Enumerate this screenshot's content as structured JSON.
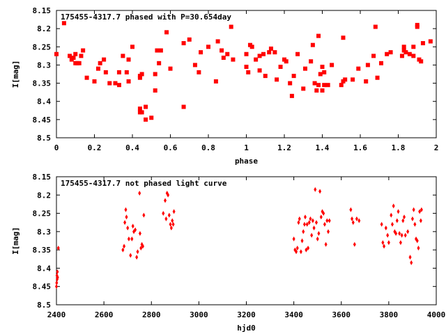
{
  "chart_data": [
    {
      "type": "scatter",
      "title": "175455-4317.7 phased with P=30.654day",
      "xlabel": "phase",
      "ylabel": "I[mag]",
      "xlim": [
        0,
        2
      ],
      "ylim": [
        8.15,
        8.5
      ],
      "y_inverted": true,
      "grid": false,
      "marker_color": "#ff0000",
      "marker": "square",
      "xticks": [
        "0",
        "0.2",
        "0.4",
        "0.6",
        "0.8",
        "1",
        "1.2",
        "1.4",
        "1.6",
        "1.8",
        "2"
      ],
      "yticks": [
        "8.15",
        "8.2",
        "8.25",
        "8.3",
        "8.35",
        "8.4",
        "8.45",
        "8.5"
      ],
      "points": [
        [
          0.0,
          8.27
        ],
        [
          0.04,
          8.185
        ],
        [
          0.07,
          8.275
        ],
        [
          0.08,
          8.285
        ],
        [
          0.09,
          8.28
        ],
        [
          0.1,
          8.295
        ],
        [
          0.1,
          8.27
        ],
        [
          0.11,
          8.295
        ],
        [
          0.12,
          8.295
        ],
        [
          0.13,
          8.275
        ],
        [
          0.14,
          8.26
        ],
        [
          0.16,
          8.335
        ],
        [
          0.2,
          8.345
        ],
        [
          0.22,
          8.31
        ],
        [
          0.23,
          8.295
        ],
        [
          0.25,
          8.285
        ],
        [
          0.26,
          8.32
        ],
        [
          0.28,
          8.35
        ],
        [
          0.31,
          8.35
        ],
        [
          0.33,
          8.355
        ],
        [
          0.33,
          8.32
        ],
        [
          0.35,
          8.275
        ],
        [
          0.37,
          8.32
        ],
        [
          0.38,
          8.345
        ],
        [
          0.38,
          8.285
        ],
        [
          0.4,
          8.25
        ],
        [
          0.44,
          8.335
        ],
        [
          0.44,
          8.33
        ],
        [
          0.45,
          8.325
        ],
        [
          0.44,
          8.42
        ],
        [
          0.44,
          8.43
        ],
        [
          0.45,
          8.43
        ],
        [
          0.47,
          8.45
        ],
        [
          0.47,
          8.415
        ],
        [
          0.5,
          8.445
        ],
        [
          0.52,
          8.37
        ],
        [
          0.52,
          8.325
        ],
        [
          0.53,
          8.26
        ],
        [
          0.54,
          8.295
        ],
        [
          0.55,
          8.26
        ],
        [
          0.58,
          8.21
        ],
        [
          0.6,
          8.31
        ],
        [
          0.67,
          8.415
        ],
        [
          0.67,
          8.24
        ],
        [
          0.7,
          8.23
        ],
        [
          0.73,
          8.3
        ],
        [
          0.75,
          8.32
        ],
        [
          0.76,
          8.265
        ],
        [
          0.8,
          8.25
        ],
        [
          0.84,
          8.345
        ],
        [
          0.85,
          8.235
        ],
        [
          0.87,
          8.26
        ],
        [
          0.88,
          8.28
        ],
        [
          0.9,
          8.27
        ],
        [
          0.92,
          8.195
        ],
        [
          0.93,
          8.285
        ],
        [
          1.0,
          8.27
        ],
        [
          1.0,
          8.305
        ],
        [
          1.01,
          8.32
        ],
        [
          1.02,
          8.245
        ],
        [
          1.03,
          8.25
        ],
        [
          1.05,
          8.285
        ],
        [
          1.07,
          8.315
        ],
        [
          1.07,
          8.275
        ],
        [
          1.09,
          8.27
        ],
        [
          1.1,
          8.33
        ],
        [
          1.12,
          8.265
        ],
        [
          1.13,
          8.255
        ],
        [
          1.15,
          8.265
        ],
        [
          1.16,
          8.34
        ],
        [
          1.18,
          8.305
        ],
        [
          1.2,
          8.285
        ],
        [
          1.21,
          8.29
        ],
        [
          1.23,
          8.35
        ],
        [
          1.24,
          8.385
        ],
        [
          1.25,
          8.33
        ],
        [
          1.27,
          8.27
        ],
        [
          1.3,
          8.365
        ],
        [
          1.31,
          8.31
        ],
        [
          1.34,
          8.29
        ],
        [
          1.35,
          8.245
        ],
        [
          1.36,
          8.35
        ],
        [
          1.37,
          8.37
        ],
        [
          1.38,
          8.22
        ],
        [
          1.38,
          8.355
        ],
        [
          1.39,
          8.325
        ],
        [
          1.4,
          8.305
        ],
        [
          1.4,
          8.37
        ],
        [
          1.41,
          8.355
        ],
        [
          1.41,
          8.32
        ],
        [
          1.43,
          8.355
        ],
        [
          1.45,
          8.3
        ],
        [
          1.5,
          8.355
        ],
        [
          1.51,
          8.345
        ],
        [
          1.51,
          8.225
        ],
        [
          1.52,
          8.34
        ],
        [
          1.56,
          8.34
        ],
        [
          1.59,
          8.31
        ],
        [
          1.63,
          8.345
        ],
        [
          1.64,
          8.3
        ],
        [
          1.67,
          8.275
        ],
        [
          1.68,
          8.195
        ],
        [
          1.69,
          8.335
        ],
        [
          1.71,
          8.295
        ],
        [
          1.74,
          8.27
        ],
        [
          1.76,
          8.265
        ],
        [
          1.82,
          8.275
        ],
        [
          1.83,
          8.25
        ],
        [
          1.83,
          8.26
        ],
        [
          1.84,
          8.265
        ],
        [
          1.86,
          8.27
        ],
        [
          1.88,
          8.275
        ],
        [
          1.88,
          8.25
        ],
        [
          1.9,
          8.195
        ],
        [
          1.9,
          8.19
        ],
        [
          1.91,
          8.285
        ],
        [
          1.92,
          8.29
        ],
        [
          1.93,
          8.24
        ],
        [
          1.97,
          8.235
        ]
      ]
    },
    {
      "type": "scatter",
      "title": "175455-4317.7 not phased light curve",
      "xlabel": "hjd0",
      "ylabel": "I[mag]",
      "xlim": [
        2400,
        4000
      ],
      "ylim": [
        8.15,
        8.5
      ],
      "y_inverted": true,
      "grid": false,
      "marker_color": "#ff0000",
      "marker": "diamond",
      "xticks": [
        "2400",
        "2600",
        "2800",
        "3000",
        "3200",
        "3400",
        "3600",
        "3800",
        "4000"
      ],
      "yticks": [
        "8.15",
        "8.2",
        "8.25",
        "8.3",
        "8.35",
        "8.4",
        "8.45",
        "8.5"
      ],
      "points": [
        [
          2400,
          8.45
        ],
        [
          2401,
          8.44
        ],
        [
          2402,
          8.42
        ],
        [
          2403,
          8.43
        ],
        [
          2404,
          8.41
        ],
        [
          2405,
          8.425
        ],
        [
          2408,
          8.345
        ],
        [
          2680,
          8.35
        ],
        [
          2685,
          8.34
        ],
        [
          2688,
          8.275
        ],
        [
          2692,
          8.24
        ],
        [
          2695,
          8.26
        ],
        [
          2700,
          8.29
        ],
        [
          2705,
          8.32
        ],
        [
          2712,
          8.365
        ],
        [
          2718,
          8.32
        ],
        [
          2722,
          8.285
        ],
        [
          2726,
          8.3
        ],
        [
          2732,
          8.295
        ],
        [
          2738,
          8.37
        ],
        [
          2742,
          8.355
        ],
        [
          2750,
          8.195
        ],
        [
          2752,
          8.305
        ],
        [
          2756,
          8.345
        ],
        [
          2760,
          8.335
        ],
        [
          2764,
          8.34
        ],
        [
          2768,
          8.255
        ],
        [
          2850,
          8.25
        ],
        [
          2858,
          8.215
        ],
        [
          2862,
          8.265
        ],
        [
          2866,
          8.195
        ],
        [
          2870,
          8.2
        ],
        [
          2875,
          8.255
        ],
        [
          2880,
          8.28
        ],
        [
          2884,
          8.29
        ],
        [
          2888,
          8.27
        ],
        [
          2892,
          8.28
        ],
        [
          2895,
          8.245
        ],
        [
          3400,
          8.32
        ],
        [
          3405,
          8.35
        ],
        [
          3410,
          8.355
        ],
        [
          3415,
          8.345
        ],
        [
          3420,
          8.275
        ],
        [
          3424,
          8.265
        ],
        [
          3430,
          8.355
        ],
        [
          3435,
          8.325
        ],
        [
          3440,
          8.3
        ],
        [
          3445,
          8.28
        ],
        [
          3448,
          8.26
        ],
        [
          3452,
          8.35
        ],
        [
          3456,
          8.28
        ],
        [
          3460,
          8.345
        ],
        [
          3465,
          8.275
        ],
        [
          3470,
          8.265
        ],
        [
          3475,
          8.31
        ],
        [
          3480,
          8.27
        ],
        [
          3485,
          8.29
        ],
        [
          3490,
          8.185
        ],
        [
          3495,
          8.275
        ],
        [
          3500,
          8.32
        ],
        [
          3505,
          8.305
        ],
        [
          3510,
          8.19
        ],
        [
          3515,
          8.26
        ],
        [
          3520,
          8.245
        ],
        [
          3525,
          8.25
        ],
        [
          3530,
          8.28
        ],
        [
          3535,
          8.335
        ],
        [
          3540,
          8.27
        ],
        [
          3545,
          8.3
        ],
        [
          3550,
          8.27
        ],
        [
          3640,
          8.24
        ],
        [
          3645,
          8.265
        ],
        [
          3650,
          8.275
        ],
        [
          3656,
          8.335
        ],
        [
          3665,
          8.265
        ],
        [
          3675,
          8.27
        ],
        [
          3770,
          8.28
        ],
        [
          3775,
          8.33
        ],
        [
          3780,
          8.34
        ],
        [
          3788,
          8.29
        ],
        [
          3795,
          8.31
        ],
        [
          3800,
          8.33
        ],
        [
          3810,
          8.255
        ],
        [
          3815,
          8.28
        ],
        [
          3820,
          8.23
        ],
        [
          3825,
          8.3
        ],
        [
          3830,
          8.305
        ],
        [
          3835,
          8.27
        ],
        [
          3840,
          8.245
        ],
        [
          3845,
          8.305
        ],
        [
          3850,
          8.33
        ],
        [
          3855,
          8.31
        ],
        [
          3860,
          8.27
        ],
        [
          3865,
          8.26
        ],
        [
          3870,
          8.31
        ],
        [
          3880,
          8.3
        ],
        [
          3890,
          8.37
        ],
        [
          3895,
          8.385
        ],
        [
          3900,
          8.265
        ],
        [
          3905,
          8.24
        ],
        [
          3910,
          8.28
        ],
        [
          3915,
          8.32
        ],
        [
          3920,
          8.325
        ],
        [
          3925,
          8.345
        ],
        [
          3930,
          8.245
        ],
        [
          3935,
          8.27
        ],
        [
          3938,
          8.24
        ]
      ]
    }
  ]
}
